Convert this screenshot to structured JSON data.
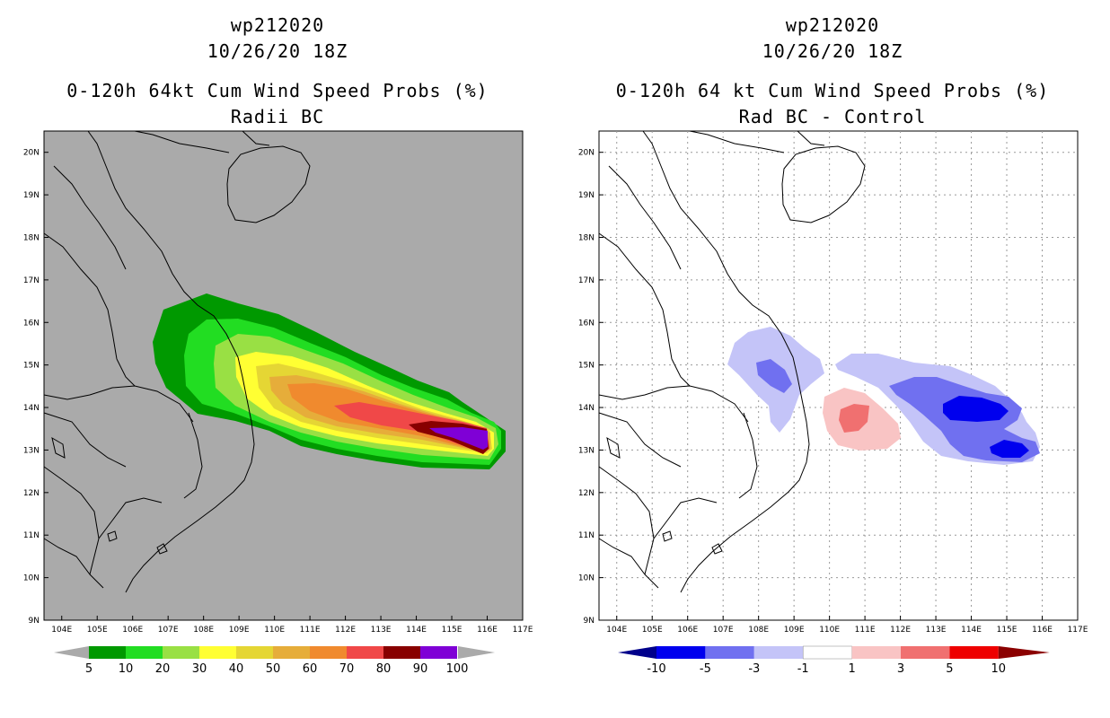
{
  "left": {
    "title_line1": "wp212020",
    "title_line2": "10/26/20 18Z",
    "title_line3": "0-120h 64kt Cum Wind Speed Probs (%)",
    "title_line4": "Radii BC",
    "background_color": "#aaaaaa",
    "colorbar": {
      "colors": [
        "#009900",
        "#22dd22",
        "#99e044",
        "#ffff33",
        "#e5d634",
        "#e6ad3a",
        "#f08a2e",
        "#f04848",
        "#880000",
        "#7f00d6"
      ],
      "labels": [
        "5",
        "10",
        "20",
        "30",
        "40",
        "50",
        "60",
        "70",
        "80",
        "90",
        "100"
      ]
    }
  },
  "right": {
    "title_line1": "wp212020",
    "title_line2": "10/26/20 18Z",
    "title_line3": "0-120h 64 kt Cum Wind Speed Probs (%)",
    "title_line4": "Rad BC - Control",
    "background_color": "#ffffff",
    "colorbar": {
      "colors": [
        "#00008b",
        "#0000ee",
        "#7070f0",
        "#c4c4f8",
        "#ffffff",
        "#f9c4c4",
        "#f07070",
        "#ee0000",
        "#8b0000"
      ],
      "labels": [
        "-10",
        "-5",
        "-3",
        "-1",
        "1",
        "3",
        "5",
        "10"
      ]
    }
  },
  "axes": {
    "lon_labels": [
      "104E",
      "105E",
      "106E",
      "107E",
      "108E",
      "109E",
      "110E",
      "111E",
      "112E",
      "113E",
      "114E",
      "115E",
      "116E",
      "117E"
    ],
    "lat_labels": [
      "20N",
      "19N",
      "18N",
      "17N",
      "16N",
      "15N",
      "14N",
      "13N",
      "12N",
      "11N",
      "10N",
      "9N"
    ]
  },
  "map_extent": {
    "lon_min": 103.5,
    "lon_max": 117,
    "lat_min": 9,
    "lat_max": 20.5
  }
}
